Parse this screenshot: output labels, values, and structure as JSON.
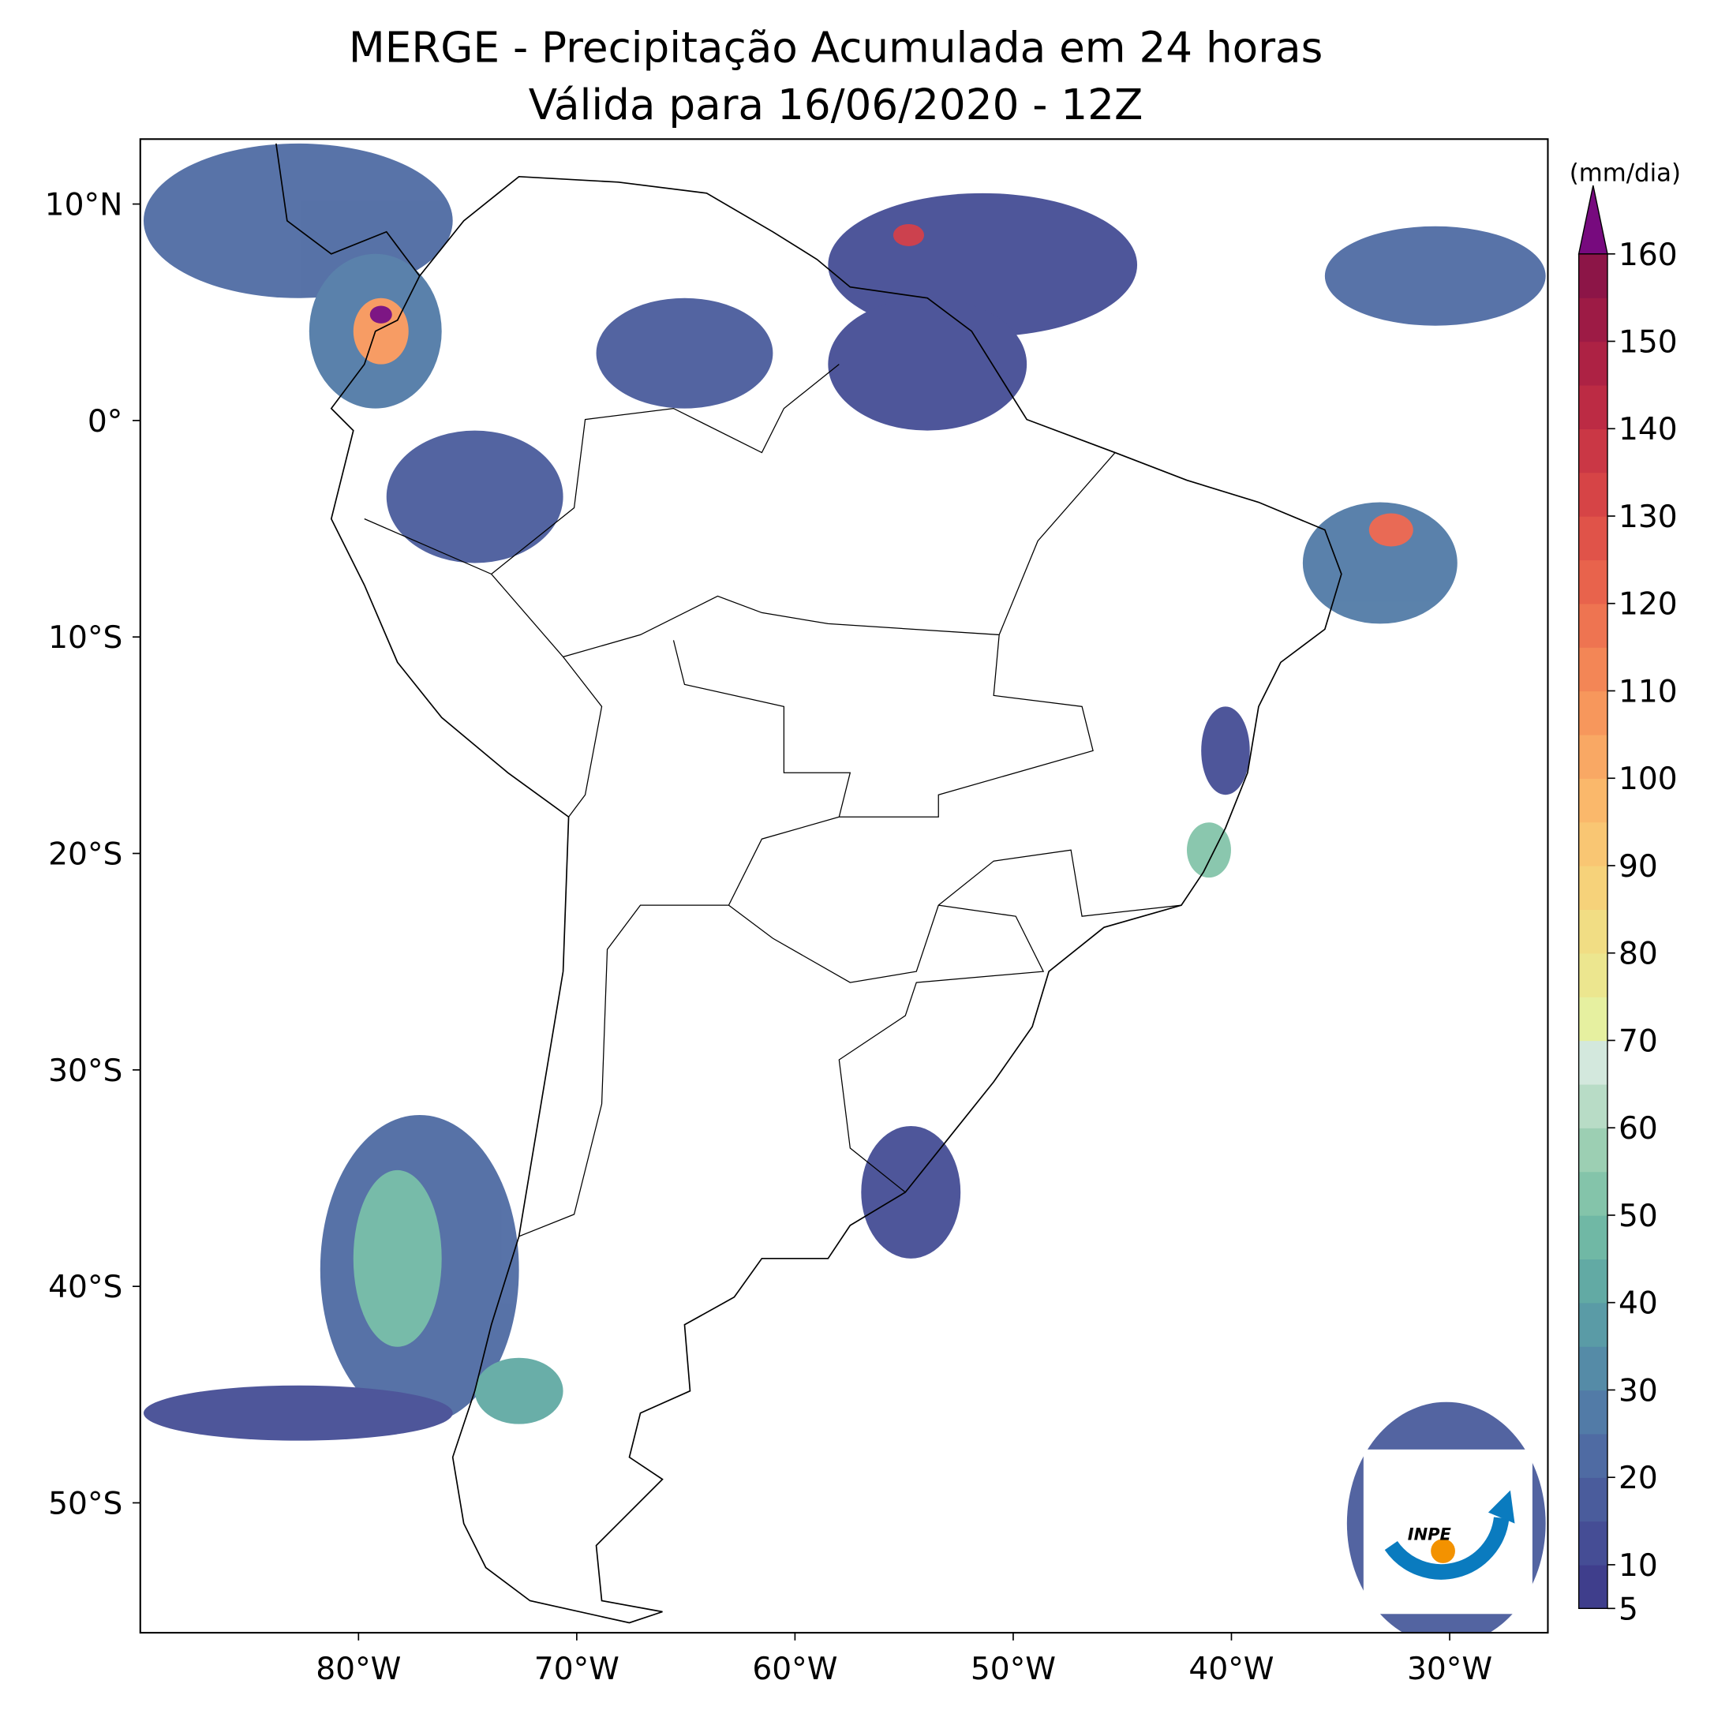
{
  "title": [
    "MERGE - Precipitação Acumulada em 24 horas",
    "Válida para 16/06/2020 - 12Z"
  ],
  "map": {
    "xlim": [
      -90,
      -25.5
    ],
    "ylim": [
      -56,
      13
    ],
    "xticks": [
      {
        "value": -80,
        "label": "80°W"
      },
      {
        "value": -70,
        "label": "70°W"
      },
      {
        "value": -60,
        "label": "60°W"
      },
      {
        "value": -50,
        "label": "50°W"
      },
      {
        "value": -40,
        "label": "40°W"
      },
      {
        "value": -30,
        "label": "30°W"
      }
    ],
    "yticks": [
      {
        "value": 10,
        "label": "10°N"
      },
      {
        "value": 0,
        "label": "0°"
      },
      {
        "value": -10,
        "label": "10°S"
      },
      {
        "value": -20,
        "label": "20°S"
      },
      {
        "value": -30,
        "label": "30°S"
      },
      {
        "value": -40,
        "label": "40°S"
      },
      {
        "value": -50,
        "label": "50°S"
      }
    ]
  },
  "colorbar": {
    "label": "(mm/dia)",
    "lim": [
      5,
      160
    ],
    "ticks": [
      5,
      10,
      20,
      30,
      40,
      50,
      60,
      70,
      80,
      90,
      100,
      110,
      120,
      130,
      140,
      150,
      160
    ],
    "levels": [
      5,
      10,
      15,
      20,
      25,
      30,
      35,
      40,
      45,
      50,
      55,
      60,
      65,
      70,
      75,
      80,
      85,
      90,
      95,
      100,
      105,
      110,
      115,
      120,
      125,
      130,
      135,
      140,
      145,
      150,
      155,
      160
    ],
    "colors": [
      "#3f3e8c",
      "#454d95",
      "#4a5c9c",
      "#4f6ba3",
      "#527ba7",
      "#558ba7",
      "#5a9ba6",
      "#62aaa4",
      "#70b8a5",
      "#84c4aa",
      "#9ccfb3",
      "#b8dcc6",
      "#d3e8dd",
      "#e6f0a0",
      "#ece68f",
      "#f1dd84",
      "#f6d27a",
      "#f9c673",
      "#fab86b",
      "#f9a864",
      "#f7975c",
      "#f38656",
      "#ee7451",
      "#e8634c",
      "#e05349",
      "#d64446",
      "#ca3745",
      "#bc2b44",
      "#ad2244",
      "#9d1b45",
      "#8c1547"
    ],
    "extend_color": "#770a7e"
  },
  "logo_text": "INPE"
}
